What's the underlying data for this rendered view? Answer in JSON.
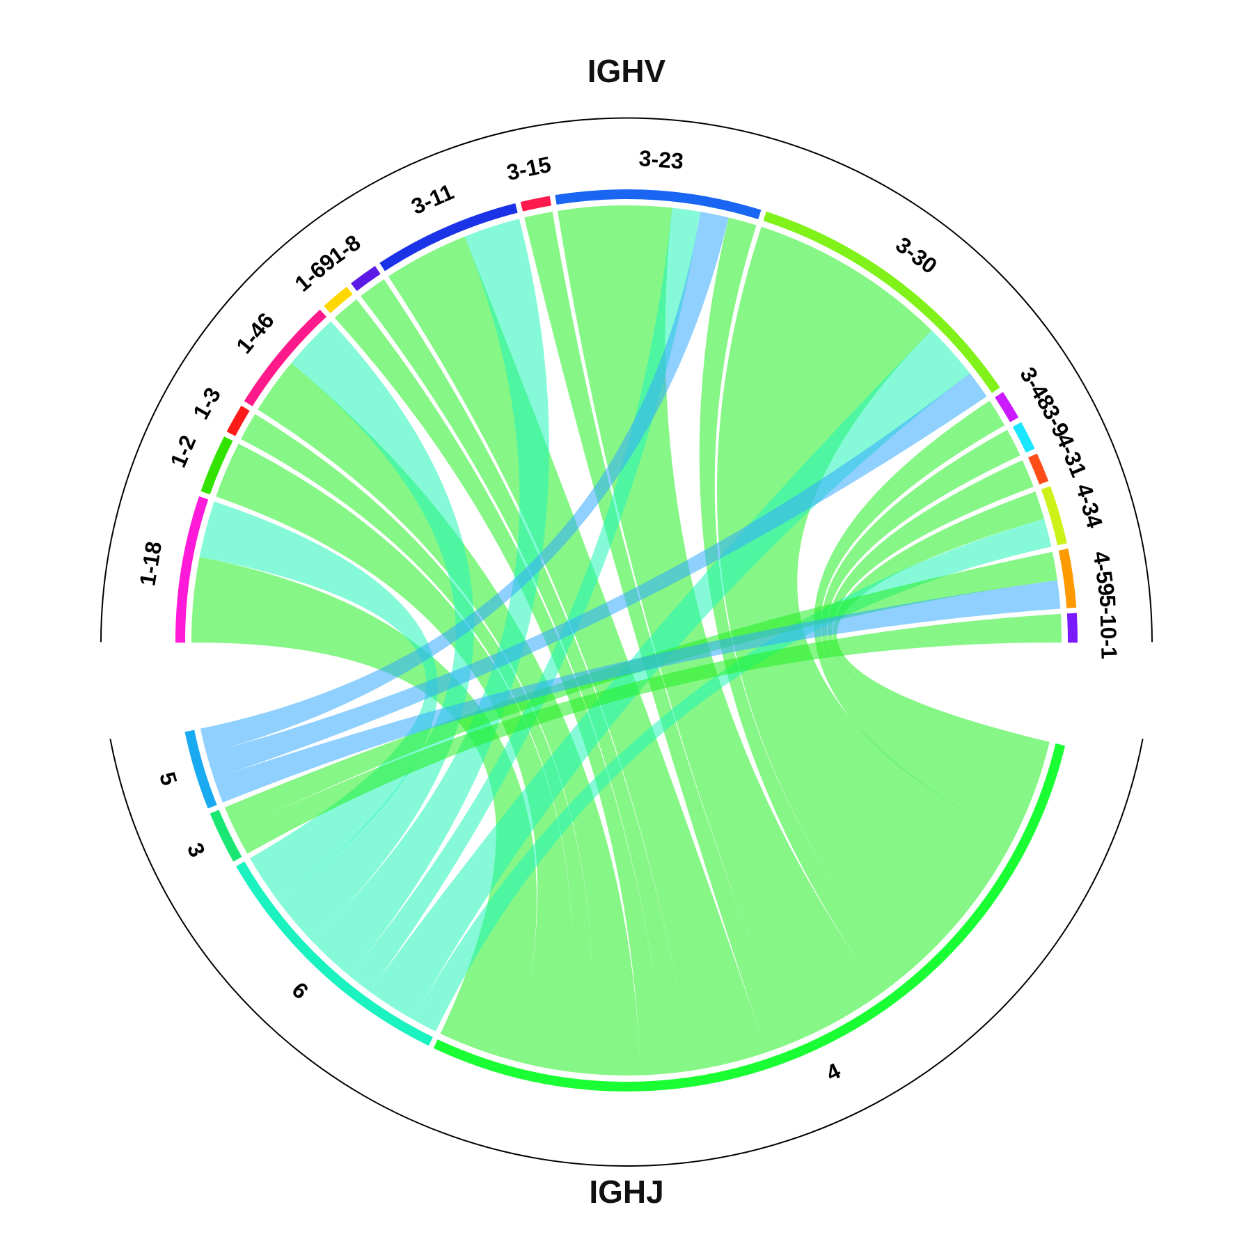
{
  "chart_data": {
    "type": "chord",
    "groups": [
      {
        "name": "IGHV",
        "position": "top"
      },
      {
        "name": "IGHJ",
        "position": "bottom"
      }
    ],
    "sectors": [
      {
        "id": "v1-18",
        "group": "IGHV",
        "label": "1-18",
        "color": "#ff1ad9"
      },
      {
        "id": "v1-2",
        "group": "IGHV",
        "label": "1-2",
        "color": "#33e300"
      },
      {
        "id": "v1-3",
        "group": "IGHV",
        "label": "1-3",
        "color": "#ff1a1a"
      },
      {
        "id": "v1-46",
        "group": "IGHV",
        "label": "1-46",
        "color": "#ff1a8c"
      },
      {
        "id": "v1-69",
        "group": "IGHV",
        "label": "1-69",
        "color": "#ffd700"
      },
      {
        "id": "v1-8",
        "group": "IGHV",
        "label": "1-8",
        "color": "#5b1ae6"
      },
      {
        "id": "v3-11",
        "group": "IGHV",
        "label": "3-11",
        "color": "#1a33e6"
      },
      {
        "id": "v3-15",
        "group": "IGHV",
        "label": "3-15",
        "color": "#ff1a4d"
      },
      {
        "id": "v3-23",
        "group": "IGHV",
        "label": "3-23",
        "color": "#1a66f2"
      },
      {
        "id": "v3-30",
        "group": "IGHV",
        "label": "3-30",
        "color": "#80f21a"
      },
      {
        "id": "v3-48",
        "group": "IGHV",
        "label": "3-48",
        "color": "#cc1aff"
      },
      {
        "id": "v3-9",
        "group": "IGHV",
        "label": "3-9",
        "color": "#1ae6ff"
      },
      {
        "id": "v4-31",
        "group": "IGHV",
        "label": "4-31",
        "color": "#ff4d1a"
      },
      {
        "id": "v4-34",
        "group": "IGHV",
        "label": "4-34",
        "color": "#ccf21a"
      },
      {
        "id": "v4-59",
        "group": "IGHV",
        "label": "4-59",
        "color": "#ff9900"
      },
      {
        "id": "v5-10-1",
        "group": "IGHV",
        "label": "5-10-1",
        "color": "#7a1aff"
      },
      {
        "id": "j5",
        "group": "IGHJ",
        "label": "5",
        "color": "#1aaaf2"
      },
      {
        "id": "j3",
        "group": "IGHJ",
        "label": "3",
        "color": "#1ae673"
      },
      {
        "id": "j6",
        "group": "IGHJ",
        "label": "6",
        "color": "#1af2c0"
      },
      {
        "id": "j4",
        "group": "IGHJ",
        "label": "4",
        "color": "#1aff33"
      }
    ],
    "links": [
      {
        "from": "v1-18",
        "to": "j4",
        "value": 3
      },
      {
        "from": "v1-18",
        "to": "j6",
        "value": 2
      },
      {
        "from": "v1-2",
        "to": "j4",
        "value": 2
      },
      {
        "from": "v1-3",
        "to": "j4",
        "value": 1
      },
      {
        "from": "v1-46",
        "to": "j4",
        "value": 2
      },
      {
        "from": "v1-46",
        "to": "j6",
        "value": 2
      },
      {
        "from": "v1-69",
        "to": "j4",
        "value": 1
      },
      {
        "from": "v1-8",
        "to": "j4",
        "value": 1
      },
      {
        "from": "v3-11",
        "to": "j4",
        "value": 3
      },
      {
        "from": "v3-11",
        "to": "j6",
        "value": 2
      },
      {
        "from": "v3-15",
        "to": "j4",
        "value": 1
      },
      {
        "from": "v3-23",
        "to": "j4",
        "value": 4
      },
      {
        "from": "v3-23",
        "to": "j6",
        "value": 1
      },
      {
        "from": "v3-23",
        "to": "j5",
        "value": 1
      },
      {
        "from": "v3-23",
        "to": "j4",
        "value": 1
      },
      {
        "from": "v3-30",
        "to": "j4",
        "value": 7
      },
      {
        "from": "v3-30",
        "to": "j6",
        "value": 2
      },
      {
        "from": "v3-30",
        "to": "j5",
        "value": 1
      },
      {
        "from": "v3-48",
        "to": "j4",
        "value": 1
      },
      {
        "from": "v3-9",
        "to": "j4",
        "value": 1
      },
      {
        "from": "v4-31",
        "to": "j4",
        "value": 1
      },
      {
        "from": "v4-34",
        "to": "j4",
        "value": 1
      },
      {
        "from": "v4-34",
        "to": "j6",
        "value": 1
      },
      {
        "from": "v4-59",
        "to": "j3",
        "value": 1
      },
      {
        "from": "v4-59",
        "to": "j5",
        "value": 1
      },
      {
        "from": "v5-10-1",
        "to": "j3",
        "value": 1
      }
    ]
  }
}
